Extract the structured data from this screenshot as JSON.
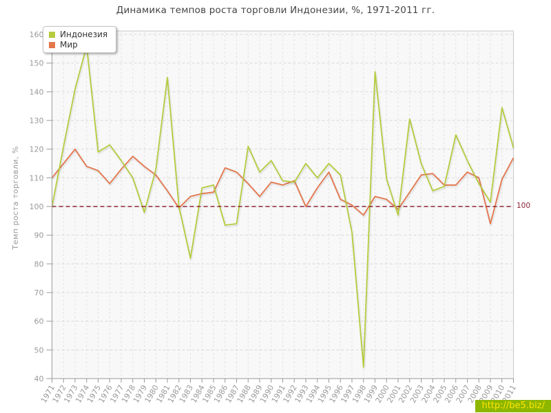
{
  "title": "Динамика темпов роста торговли Индонезии, %, 1971-2011 гг.",
  "y_axis": {
    "label": "Темп роста торговли, %"
  },
  "legend": [
    {
      "label": "Индонезия",
      "color": "#b6cc3e"
    },
    {
      "label": "Мир",
      "color": "#e4764b"
    }
  ],
  "reference_line": {
    "value": 100,
    "label": "100",
    "color": "#8b2434"
  },
  "watermark": "http://be5.biz/",
  "chart_data": {
    "type": "line",
    "title": "Динамика темпов роста торговли Индонезии, %, 1971-2011 гг.",
    "xlabel": "",
    "ylabel": "Темп роста торговли, %",
    "ylim": [
      40,
      160
    ],
    "y_ticks": [
      40,
      50,
      60,
      70,
      80,
      90,
      100,
      110,
      120,
      130,
      140,
      150,
      160
    ],
    "grid": true,
    "legend_position": "top-left",
    "reference_line": 100,
    "x": [
      1971,
      1972,
      1973,
      1974,
      1975,
      1976,
      1977,
      1978,
      1979,
      1980,
      1981,
      1982,
      1983,
      1984,
      1985,
      1986,
      1987,
      1988,
      1989,
      1990,
      1991,
      1992,
      1993,
      1994,
      1995,
      1996,
      1997,
      1998,
      1999,
      2000,
      2001,
      2002,
      2003,
      2004,
      2005,
      2006,
      2007,
      2008,
      2009,
      2010,
      2011
    ],
    "series": [
      {
        "name": "Индонезия",
        "color": "#b6cc3e",
        "values": [
          100,
          121,
          141,
          156,
          119,
          121.5,
          116,
          110,
          98,
          113,
          145,
          100,
          82,
          106.5,
          107.5,
          93.5,
          94,
          121,
          112,
          116,
          109,
          108.5,
          115,
          110,
          115,
          111,
          91,
          44,
          147,
          109.5,
          97,
          130.5,
          115,
          105.5,
          107,
          125,
          116,
          108,
          101.5,
          134.5,
          120.5
        ]
      },
      {
        "name": "Мир",
        "color": "#e4764b",
        "values": [
          110,
          115,
          120,
          114,
          112.5,
          108,
          113,
          117.5,
          114,
          111,
          105.5,
          99.5,
          103.5,
          104.5,
          105,
          113.5,
          112,
          108,
          103.5,
          108.5,
          107.5,
          109,
          100,
          106.5,
          112,
          102.5,
          100.5,
          97,
          103.5,
          102.5,
          99,
          105,
          111,
          111.5,
          107.5,
          107.5,
          112,
          110,
          94,
          109.5,
          117
        ]
      }
    ]
  }
}
